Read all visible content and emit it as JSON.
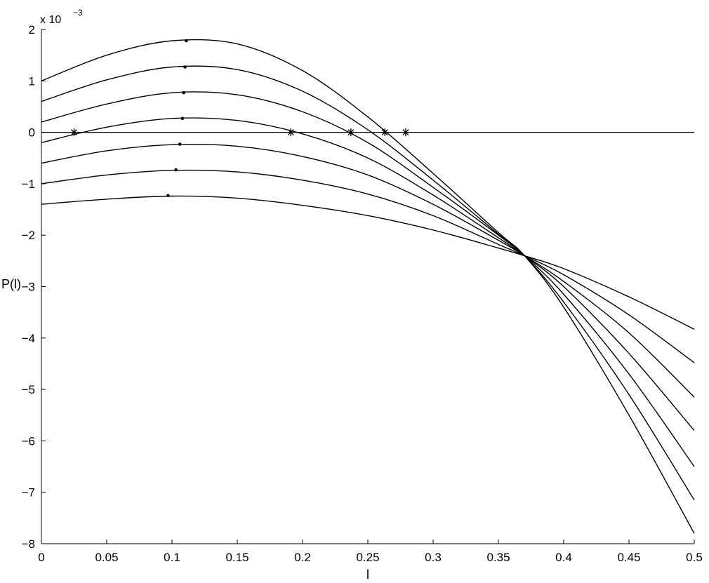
{
  "chart_data": {
    "type": "line",
    "title": "",
    "xlabel": "l",
    "ylabel": "P(l)",
    "y_multiplier_label": "x 10",
    "y_multiplier_exponent": "−3",
    "xlim": [
      0,
      0.5
    ],
    "ylim": [
      -8,
      2
    ],
    "grid": false,
    "legend": "none",
    "x_ticks": [
      "0",
      "0.05",
      "0.1",
      "0.15",
      "0.2",
      "0.25",
      "0.3",
      "0.35",
      "0.4",
      "0.45",
      "0.5"
    ],
    "y_ticks": [
      "−8",
      "−7",
      "−6",
      "−5",
      "−4",
      "−3",
      "−2",
      "−1",
      "0",
      "1",
      "2"
    ],
    "x_tick_values": [
      0,
      0.05,
      0.1,
      0.15,
      0.2,
      0.25,
      0.3,
      0.35,
      0.4,
      0.45,
      0.5
    ],
    "y_tick_values": [
      -8,
      -7,
      -6,
      -5,
      -4,
      -3,
      -2,
      -1,
      0,
      1,
      2
    ],
    "series": [
      {
        "x": [
          0,
          0.05,
          0.1,
          0.15,
          0.2,
          0.25,
          0.3,
          0.35,
          0.37,
          0.4,
          0.45,
          0.5
        ],
        "y": [
          1.0,
          1.5,
          1.78,
          1.72,
          1.2,
          0.3,
          -0.8,
          -1.95,
          -2.4,
          -3.4,
          -5.5,
          -7.8
        ]
      },
      {
        "x": [
          0,
          0.05,
          0.1,
          0.15,
          0.2,
          0.25,
          0.3,
          0.35,
          0.37,
          0.4,
          0.45,
          0.5
        ],
        "y": [
          0.6,
          1.02,
          1.27,
          1.22,
          0.8,
          0.05,
          -0.93,
          -1.98,
          -2.4,
          -3.3,
          -5.1,
          -7.15
        ]
      },
      {
        "x": [
          0,
          0.05,
          0.1,
          0.15,
          0.2,
          0.25,
          0.3,
          0.35,
          0.37,
          0.4,
          0.45,
          0.5
        ],
        "y": [
          0.2,
          0.55,
          0.77,
          0.73,
          0.4,
          -0.2,
          -1.07,
          -2.0,
          -2.4,
          -3.15,
          -4.7,
          -6.5
        ]
      },
      {
        "x": [
          0,
          0.05,
          0.1,
          0.15,
          0.2,
          0.25,
          0.3,
          0.35,
          0.37,
          0.4,
          0.45,
          0.5
        ],
        "y": [
          -0.2,
          0.1,
          0.27,
          0.23,
          -0.03,
          -0.5,
          -1.22,
          -2.05,
          -2.4,
          -3.0,
          -4.3,
          -5.8
        ]
      },
      {
        "x": [
          0,
          0.05,
          0.1,
          0.15,
          0.2,
          0.25,
          0.3,
          0.35,
          0.37,
          0.4,
          0.45,
          0.5
        ],
        "y": [
          -0.6,
          -0.36,
          -0.24,
          -0.27,
          -0.47,
          -0.83,
          -1.4,
          -2.1,
          -2.4,
          -2.9,
          -3.9,
          -5.15
        ]
      },
      {
        "x": [
          0,
          0.05,
          0.1,
          0.15,
          0.2,
          0.25,
          0.3,
          0.35,
          0.37,
          0.4,
          0.45,
          0.5
        ],
        "y": [
          -1.0,
          -0.83,
          -0.74,
          -0.77,
          -0.93,
          -1.2,
          -1.62,
          -2.18,
          -2.4,
          -2.77,
          -3.55,
          -4.48
        ]
      },
      {
        "x": [
          0,
          0.05,
          0.1,
          0.15,
          0.2,
          0.25,
          0.3,
          0.35,
          0.37,
          0.4,
          0.45,
          0.5
        ],
        "y": [
          -1.4,
          -1.3,
          -1.24,
          -1.28,
          -1.42,
          -1.62,
          -1.9,
          -2.25,
          -2.4,
          -2.65,
          -3.2,
          -3.83
        ]
      }
    ],
    "zero_line": {
      "x": [
        0,
        0.5
      ],
      "y": [
        0,
        0
      ]
    },
    "maxima_points": [
      {
        "x": 0.111,
        "y": 1.78
      },
      {
        "x": 0.11,
        "y": 1.27
      },
      {
        "x": 0.109,
        "y": 0.77
      },
      {
        "x": 0.108,
        "y": 0.27
      },
      {
        "x": 0.106,
        "y": -0.23
      },
      {
        "x": 0.103,
        "y": -0.73
      },
      {
        "x": 0.097,
        "y": -1.23
      }
    ],
    "root_markers": [
      {
        "x": 0.025,
        "y": 0
      },
      {
        "x": 0.191,
        "y": 0
      },
      {
        "x": 0.237,
        "y": 0
      },
      {
        "x": 0.263,
        "y": 0
      },
      {
        "x": 0.279,
        "y": 0
      }
    ],
    "colors": {
      "line": "#000000",
      "background": "#ffffff"
    }
  }
}
